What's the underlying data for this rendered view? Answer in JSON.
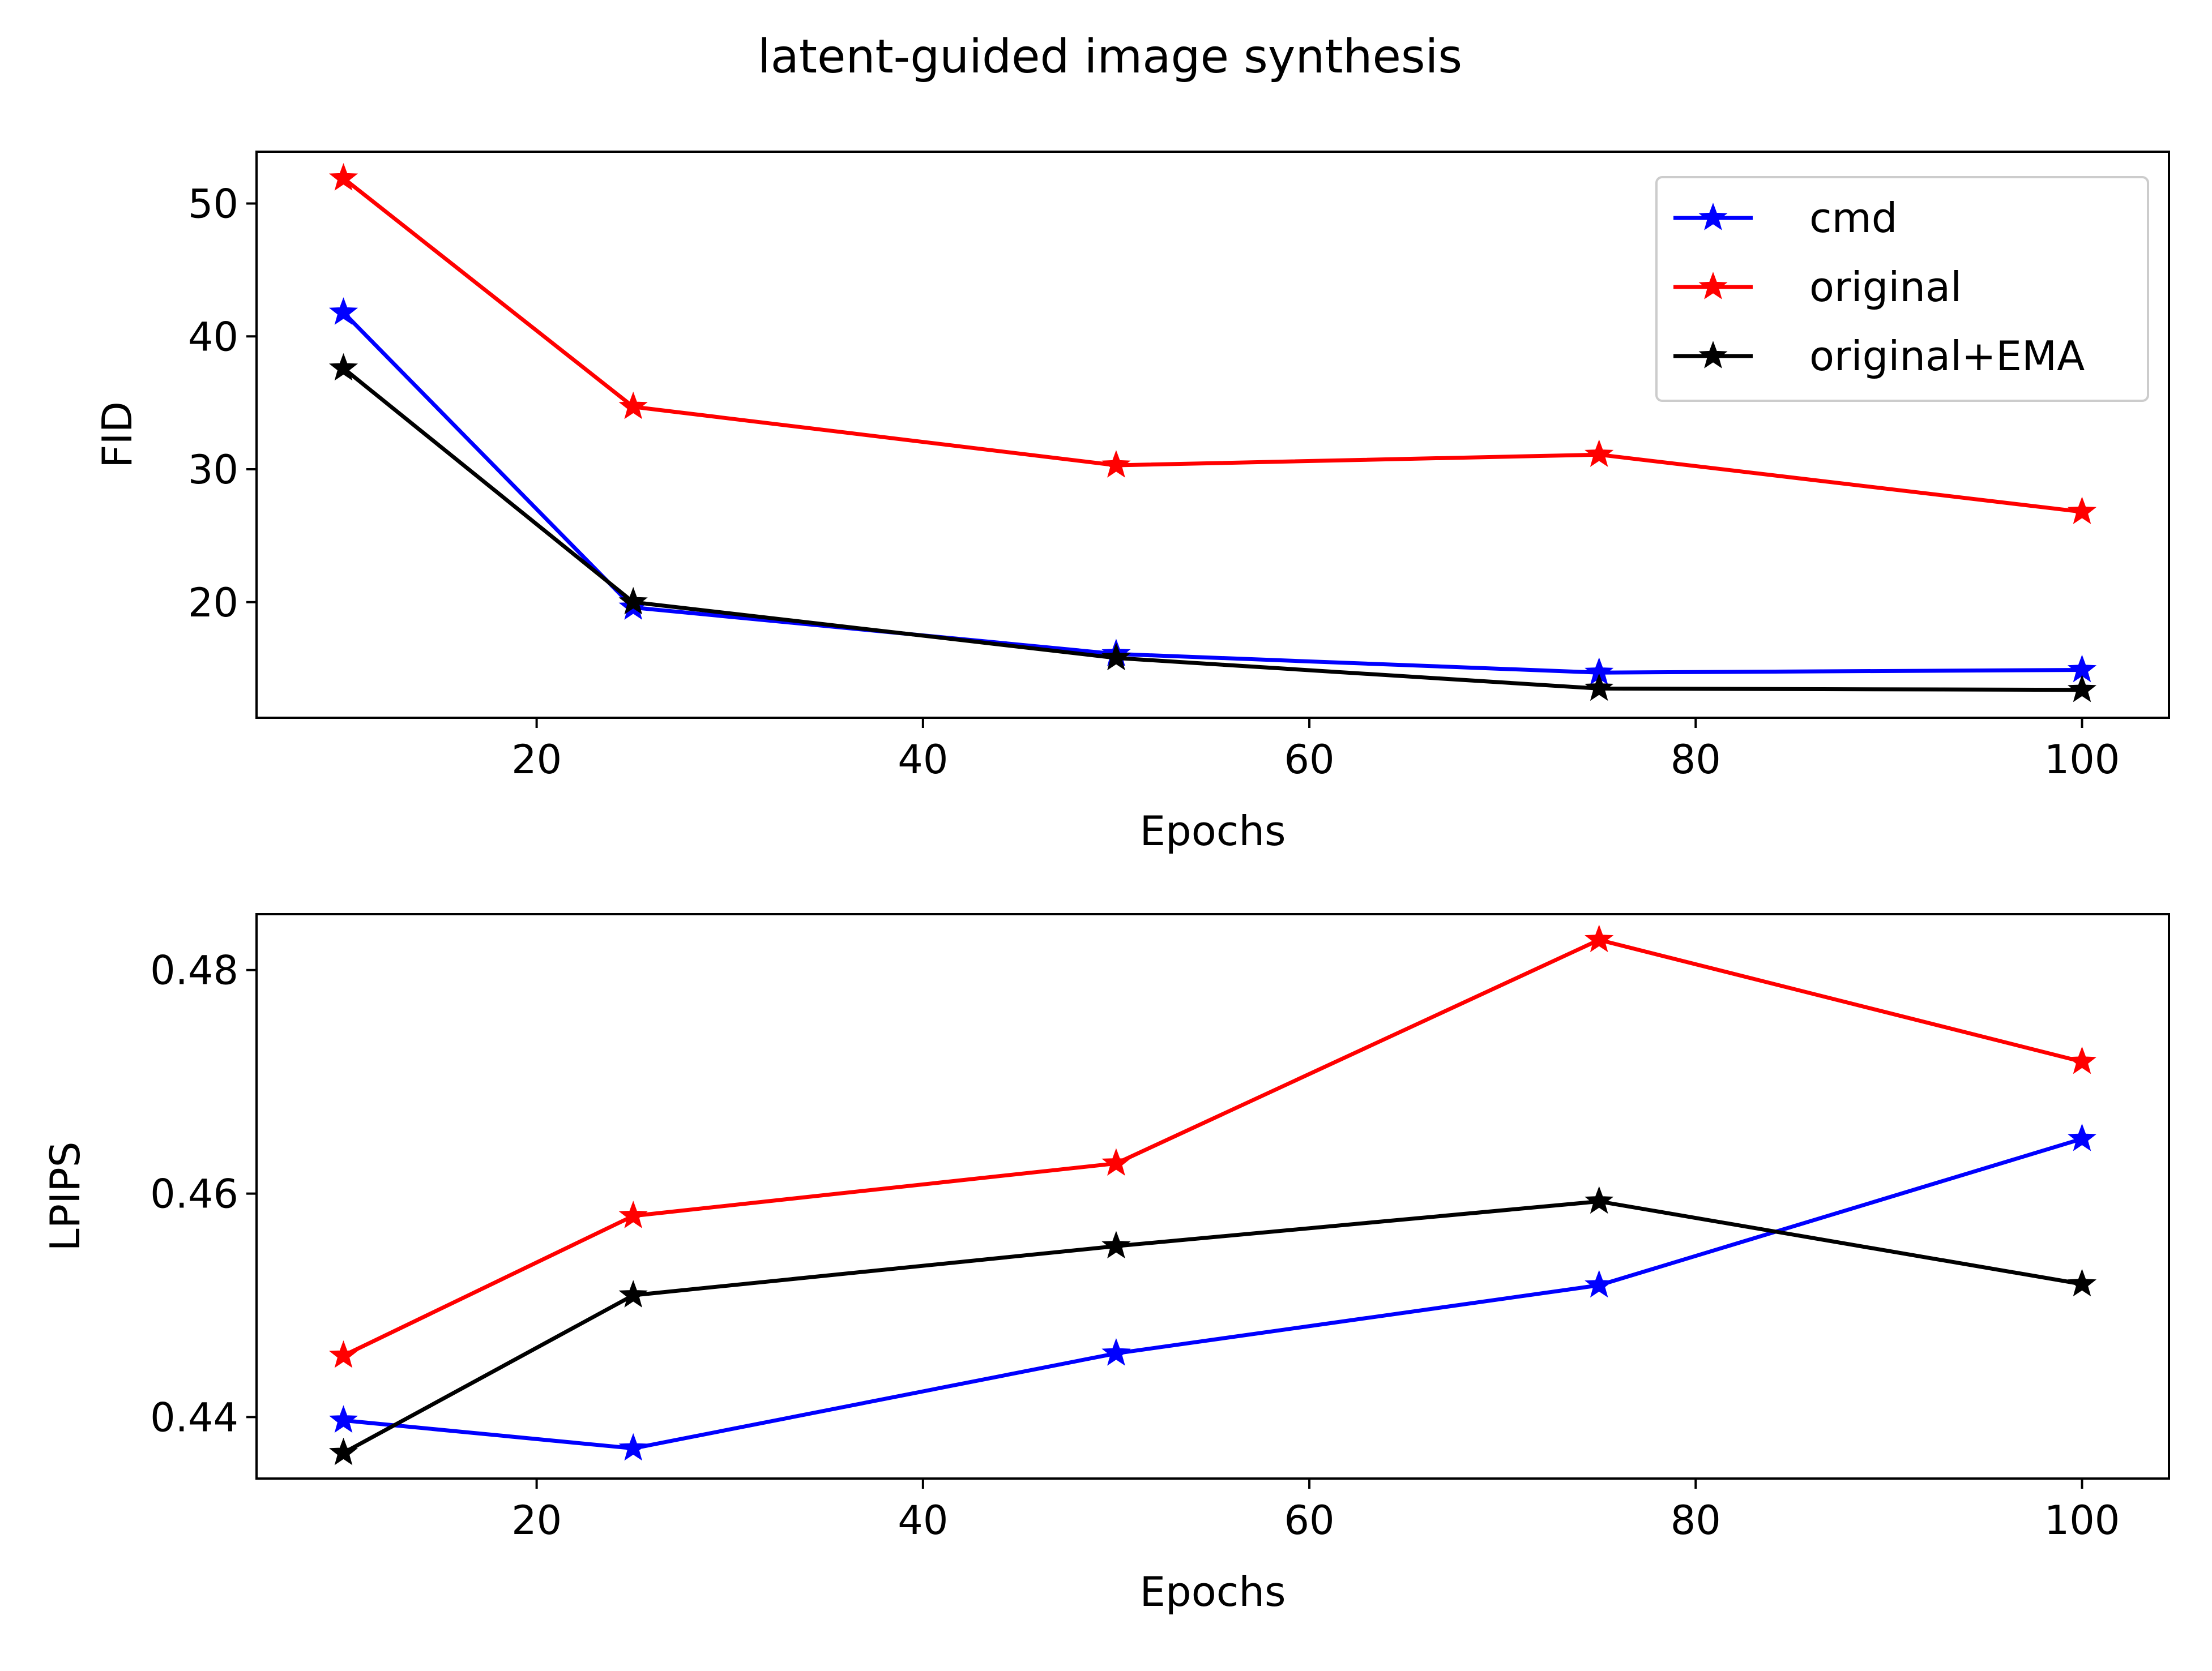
{
  "figure": {
    "suptitle": "latent-guided image synthesis"
  },
  "colors": {
    "cmd": "#0000ff",
    "original": "#ff0000",
    "original_ema": "#000000"
  },
  "chart_data": [
    {
      "type": "line",
      "marker": "star",
      "title": "",
      "xlabel": "Epochs",
      "ylabel": "FID",
      "x": [
        10,
        25,
        50,
        75,
        100
      ],
      "xlim": [
        5.5,
        104.5
      ],
      "ylim": [
        11.3,
        53.9
      ],
      "xticks": [
        20,
        40,
        60,
        80,
        100
      ],
      "yticks": [
        20,
        30,
        40,
        50
      ],
      "grid": false,
      "legend": "upper right",
      "series": [
        {
          "name": "cmd",
          "color": "#0000ff",
          "values": [
            41.8,
            19.6,
            16.1,
            14.7,
            14.9
          ]
        },
        {
          "name": "original",
          "color": "#ff0000",
          "values": [
            51.9,
            34.7,
            30.3,
            31.1,
            26.8
          ]
        },
        {
          "name": "original+EMA",
          "color": "#000000",
          "values": [
            37.6,
            20.0,
            15.8,
            13.5,
            13.4
          ]
        }
      ]
    },
    {
      "type": "line",
      "marker": "star",
      "title": "",
      "xlabel": "Epochs",
      "ylabel": "LPIPS",
      "x": [
        10,
        25,
        50,
        75,
        100
      ],
      "xlim": [
        5.5,
        104.5
      ],
      "ylim": [
        0.4345,
        0.485
      ],
      "xticks": [
        20,
        40,
        60,
        80,
        100
      ],
      "yticks": [
        0.44,
        0.46,
        0.48
      ],
      "grid": false,
      "legend": "none",
      "series": [
        {
          "name": "cmd",
          "color": "#0000ff",
          "values": [
            0.4397,
            0.4372,
            0.4457,
            0.4518,
            0.4649
          ]
        },
        {
          "name": "original",
          "color": "#ff0000",
          "values": [
            0.4455,
            0.458,
            0.4627,
            0.4827,
            0.4718
          ]
        },
        {
          "name": "original+EMA",
          "color": "#000000",
          "values": [
            0.4368,
            0.4509,
            0.4553,
            0.4593,
            0.4519
          ]
        }
      ]
    }
  ]
}
